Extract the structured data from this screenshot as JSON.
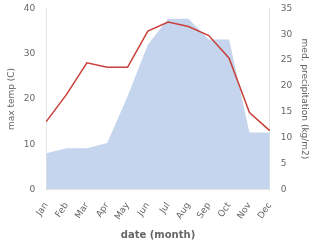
{
  "chart_data": {
    "type": "line",
    "xlabel": "date (month)",
    "ylabel": "max temp (C)",
    "y2label": "med. precipitation (kg/m2)",
    "categories": [
      "Jan",
      "Feb",
      "Mar",
      "Apr",
      "May",
      "Jun",
      "Jul",
      "Aug",
      "Sep",
      "Oct",
      "Nov",
      "Dec"
    ],
    "series": [
      {
        "type": "line",
        "color": "#c8403a",
        "values": [
          15,
          21,
          28,
          27,
          27,
          35,
          37,
          36,
          34,
          29,
          17,
          13
        ]
      },
      {
        "type": "area",
        "axis": "y2",
        "color": "#c5d5ee",
        "values": [
          7,
          8,
          8,
          9,
          18,
          28,
          33,
          33,
          29,
          29,
          11,
          11
        ]
      }
    ],
    "ylim": [
      0,
      40
    ],
    "yticks": [
      0,
      10,
      20,
      30,
      40
    ],
    "y2lim": [
      0,
      35
    ],
    "y2ticks": [
      0,
      5,
      10,
      15,
      20,
      25,
      30,
      35
    ],
    "grid": false
  }
}
